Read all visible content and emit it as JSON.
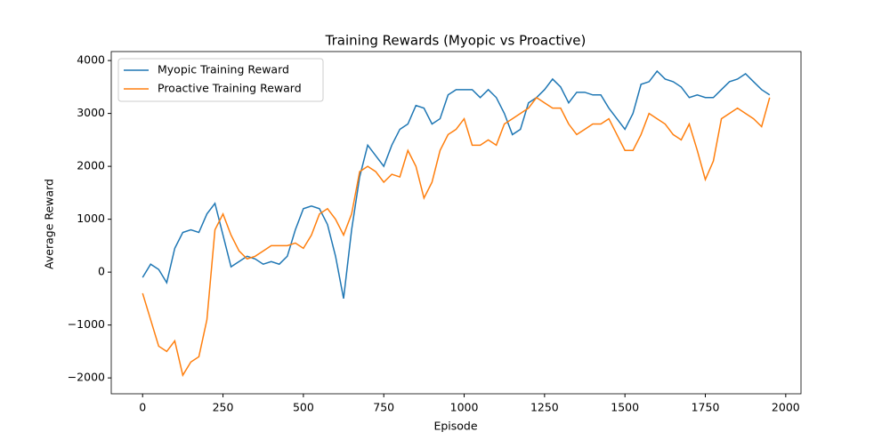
{
  "chart_data": {
    "type": "line",
    "title": "Training Rewards (Myopic vs Proactive)",
    "x_label": "Episode",
    "y_label": "Average Reward",
    "x": [
      0,
      25,
      50,
      75,
      100,
      125,
      150,
      175,
      200,
      225,
      250,
      275,
      300,
      325,
      350,
      375,
      400,
      425,
      450,
      475,
      500,
      525,
      550,
      575,
      600,
      625,
      650,
      675,
      700,
      725,
      750,
      775,
      800,
      825,
      850,
      875,
      900,
      925,
      950,
      975,
      1000,
      1025,
      1050,
      1075,
      1100,
      1125,
      1150,
      1175,
      1200,
      1225,
      1250,
      1275,
      1300,
      1325,
      1350,
      1375,
      1400,
      1425,
      1450,
      1475,
      1500,
      1525,
      1550,
      1575,
      1600,
      1625,
      1650,
      1675,
      1700,
      1725,
      1750,
      1775,
      1800,
      1825,
      1850,
      1875,
      1900,
      1925,
      1950
    ],
    "series": [
      {
        "name": "Myopic Training Reward",
        "color": "#1f77b4",
        "values": [
          -100,
          150,
          50,
          -200,
          450,
          750,
          800,
          750,
          1100,
          1300,
          700,
          100,
          200,
          300,
          250,
          150,
          200,
          150,
          300,
          800,
          1200,
          1250,
          1200,
          900,
          300,
          -500,
          800,
          1800,
          2400,
          2200,
          2000,
          2400,
          2700,
          2800,
          3150,
          3100,
          2800,
          2900,
          3350,
          3450,
          3450,
          3450,
          3300,
          3450,
          3300,
          3000,
          2600,
          2700,
          3200,
          3300,
          3450,
          3650,
          3500,
          3200,
          3400,
          3400,
          3350,
          3350,
          3100,
          2900,
          2700,
          3000,
          3550,
          3600,
          3800,
          3650,
          3600,
          3500,
          3300,
          3350,
          3300,
          3300,
          3450,
          3600,
          3650,
          3750,
          3600,
          3450,
          3350
        ]
      },
      {
        "name": "Proactive Training Reward",
        "color": "#ff7f0e",
        "values": [
          -400,
          -900,
          -1400,
          -1500,
          -1300,
          -1950,
          -1700,
          -1600,
          -900,
          800,
          1100,
          700,
          400,
          250,
          300,
          400,
          500,
          500,
          500,
          550,
          450,
          700,
          1100,
          1200,
          1000,
          700,
          1100,
          1900,
          2000,
          1900,
          1700,
          1850,
          1800,
          2300,
          2000,
          1400,
          1700,
          2300,
          2600,
          2700,
          2900,
          2400,
          2400,
          2500,
          2400,
          2800,
          2900,
          3000,
          3100,
          3300,
          3200,
          3100,
          3100,
          2800,
          2600,
          2700,
          2800,
          2800,
          2900,
          2600,
          2300,
          2300,
          2600,
          3000,
          2900,
          2800,
          2600,
          2500,
          2800,
          2300,
          1750,
          2100,
          2900,
          3000,
          3100,
          3000,
          2900,
          2750,
          3300
        ]
      }
    ],
    "xlim": [
      -97.5,
      2047.5
    ],
    "ylim": [
      -2300,
      4170
    ],
    "xticks": [
      0,
      250,
      500,
      750,
      1000,
      1250,
      1500,
      1750,
      2000
    ],
    "yticks": [
      {
        "value": -2000,
        "label": "−2000"
      },
      {
        "value": -1000,
        "label": "−1000"
      },
      0,
      1000,
      2000,
      3000,
      4000
    ],
    "legend": "upper left",
    "grid": false
  }
}
